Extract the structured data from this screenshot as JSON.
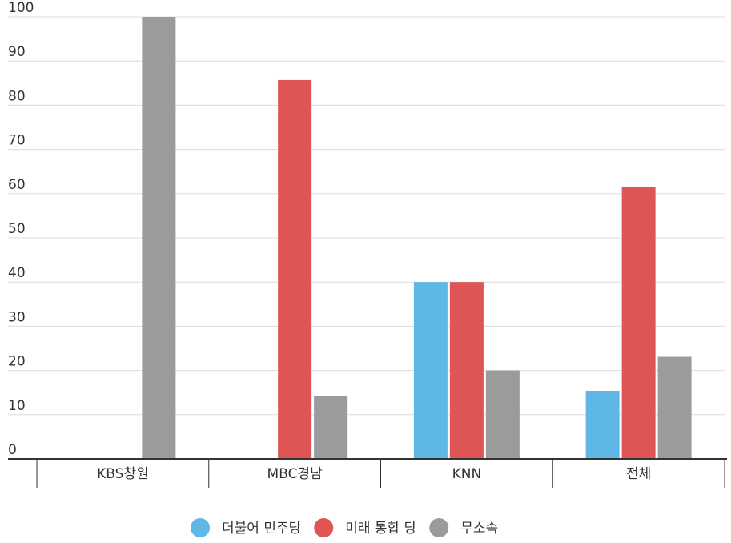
{
  "chart_data": {
    "type": "bar",
    "categories": [
      "KBS창원",
      "MBC경남",
      "KNN",
      "전체"
    ],
    "series": [
      {
        "name": "더불어 민주당",
        "color": "#5fb7e5",
        "values": [
          0,
          0,
          40,
          15.4
        ]
      },
      {
        "name": "미래 통합 당",
        "color": "#df5454",
        "values": [
          0,
          85.7,
          40,
          61.5
        ]
      },
      {
        "name": "무소속",
        "color": "#9b9b9b",
        "values": [
          100,
          14.3,
          20,
          23.1
        ]
      }
    ],
    "ylim": [
      0,
      100
    ],
    "yticks": [
      "0",
      "10",
      "20",
      "30",
      "40",
      "50",
      "60",
      "70",
      "80",
      "90",
      "100"
    ],
    "grid": true,
    "legend_position": "bottom"
  }
}
